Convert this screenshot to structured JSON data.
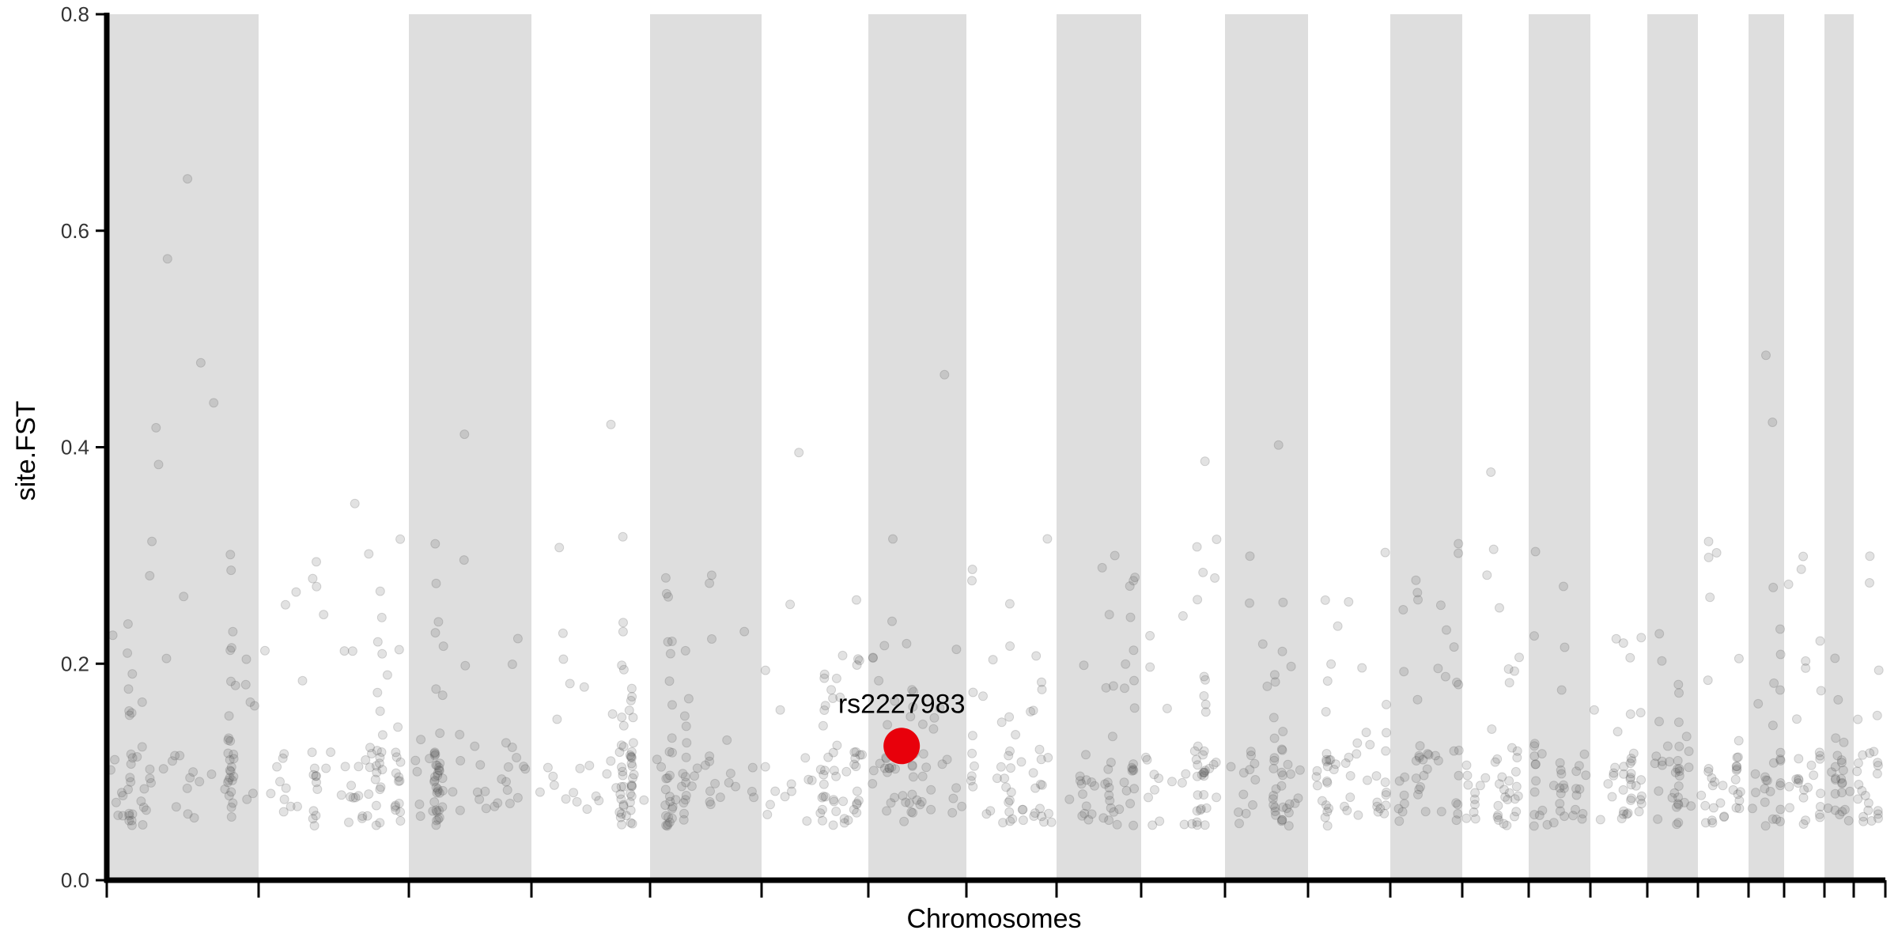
{
  "chart_data": {
    "type": "scatter",
    "title": "",
    "xlabel": "Chromosomes",
    "ylabel": "site.FST",
    "ylim": [
      0,
      0.8
    ],
    "yticks": [
      "0.0",
      "0.2",
      "0.4",
      "0.6",
      "0.8"
    ],
    "grid": false,
    "legend": "none",
    "colors": {
      "points": "#555555",
      "band": "#dedede",
      "highlight": "#e8000b",
      "axis": "#000000"
    },
    "chromosome_count": 22,
    "chromosome_shading": "alternating gray bands on odd chromosomes",
    "highlight": {
      "label": "rs2227983",
      "chromosome": 7,
      "position": 0.34,
      "fst": 0.124
    },
    "points_summary": "approx. 1000 SNPs, most with site.FST between 0.05 and 0.30, top value about 0.65 on chromosome 1",
    "notable_points": [
      {
        "chromosome": 1,
        "fst": 0.648
      },
      {
        "chromosome": 1,
        "fst": 0.574
      },
      {
        "chromosome": 1,
        "fst": 0.478
      },
      {
        "chromosome": 1,
        "fst": 0.441
      },
      {
        "chromosome": 1,
        "fst": 0.418
      },
      {
        "chromosome": 1,
        "fst": 0.384
      },
      {
        "chromosome": 2,
        "fst": 0.348
      },
      {
        "chromosome": 3,
        "fst": 0.412
      },
      {
        "chromosome": 4,
        "fst": 0.421
      },
      {
        "chromosome": 6,
        "fst": 0.395
      },
      {
        "chromosome": 7,
        "fst": 0.467
      },
      {
        "chromosome": 10,
        "fst": 0.387
      },
      {
        "chromosome": 11,
        "fst": 0.402
      },
      {
        "chromosome": 14,
        "fst": 0.377
      },
      {
        "chromosome": 19,
        "fst": 0.485
      },
      {
        "chromosome": 19,
        "fst": 0.423
      }
    ]
  }
}
